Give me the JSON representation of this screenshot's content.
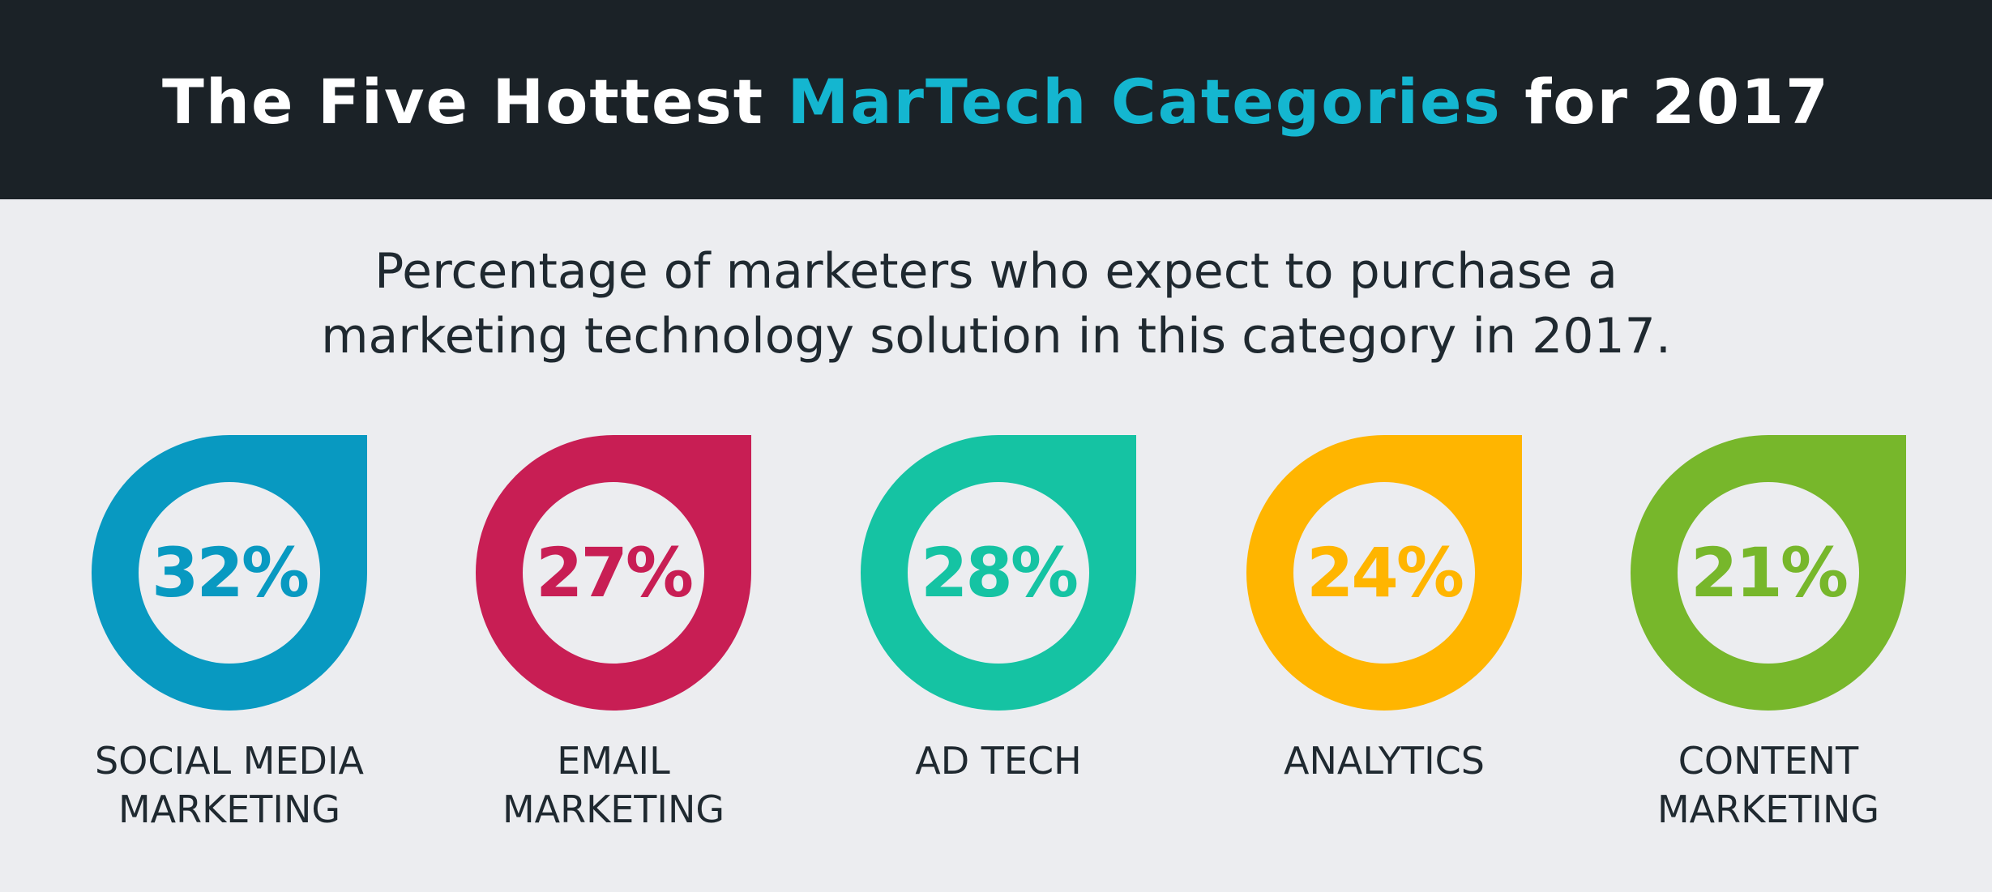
{
  "header": {
    "title_part1": "The Five Hottest ",
    "title_accent": "MarTech Categories",
    "title_part2": " for 2017",
    "background": "#1b2227",
    "accent_color": "#14b6d0"
  },
  "subtitle": {
    "line1": "Percentage of marketers who expect to purchase a",
    "line2": "marketing technology solution in this category in 2017."
  },
  "categories": [
    {
      "value": "32%",
      "label_line1": "SOCIAL MEDIA",
      "label_line2": "MARKETING",
      "color": "#0899c1"
    },
    {
      "value": "27%",
      "label_line1": "EMAIL",
      "label_line2": "MARKETING",
      "color": "#c81e54"
    },
    {
      "value": "28%",
      "label_line1": "AD TECH",
      "label_line2": "",
      "color": "#15c3a3"
    },
    {
      "value": "24%",
      "label_line1": "ANALYTICS",
      "label_line2": "",
      "color": "#ffb500"
    },
    {
      "value": "21%",
      "label_line1": "CONTENT",
      "label_line2": "MARKETING",
      "color": "#77b72b"
    }
  ]
}
